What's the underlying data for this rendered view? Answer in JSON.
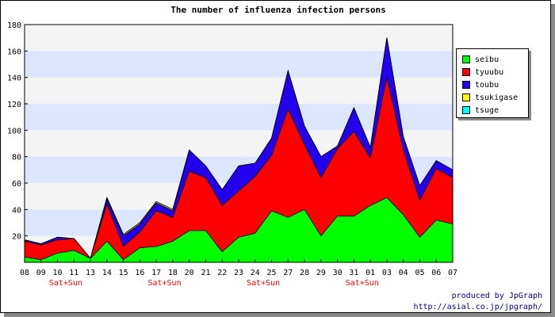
{
  "chart_data": {
    "type": "area",
    "stacked": true,
    "title": "The number of influenza infection persons",
    "xlabel": "",
    "ylabel": "",
    "ylim": [
      0,
      180
    ],
    "yticks": [
      20,
      40,
      60,
      80,
      100,
      120,
      140,
      160,
      180
    ],
    "grid": "horizontal bands",
    "legend_position": "right",
    "categories": [
      "08",
      "09",
      "10",
      "11",
      "13",
      "14",
      "15",
      "16",
      "17",
      "18",
      "20",
      "21",
      "22",
      "23",
      "24",
      "25",
      "27",
      "28",
      "29",
      "30",
      "31",
      "01",
      "03",
      "04",
      "05",
      "06",
      "07"
    ],
    "weekend_labels": [
      {
        "at": "10",
        "text": "Sat+Sun"
      },
      {
        "at": "17",
        "text": "Sat+Sun"
      },
      {
        "at": "24",
        "text": "Sat+Sun"
      },
      {
        "at": "31",
        "text": "Sat+Sun"
      }
    ],
    "series": [
      {
        "name": "seibu",
        "color": "#00ff00",
        "values": [
          4,
          2,
          7,
          9,
          3,
          16,
          2,
          11,
          12,
          16,
          24,
          24,
          8,
          19,
          22,
          39,
          34,
          40,
          20,
          35,
          35,
          43,
          49,
          36,
          19,
          32,
          29
        ]
      },
      {
        "name": "tyuubu",
        "color": "#ff0000",
        "values": [
          12,
          11,
          10,
          9,
          0,
          28,
          10,
          12,
          27,
          18,
          45,
          40,
          35,
          35,
          43,
          42,
          82,
          49,
          44,
          51,
          64,
          36,
          91,
          49,
          28,
          39,
          35
        ]
      },
      {
        "name": "toubu",
        "color": "#2200ee",
        "values": [
          1,
          1,
          2,
          0,
          0,
          4,
          8,
          6,
          6,
          5,
          16,
          9,
          12,
          19,
          10,
          13,
          29,
          14,
          16,
          2,
          18,
          8,
          30,
          10,
          11,
          6,
          6
        ]
      },
      {
        "name": "tsukigase",
        "color": "#ffff00",
        "values": [
          0,
          0,
          0,
          0,
          0,
          1,
          1,
          1,
          1,
          1,
          0,
          0,
          0,
          0,
          0,
          0,
          0,
          0,
          0,
          0,
          0,
          0,
          0,
          0,
          0,
          0,
          0
        ]
      },
      {
        "name": "tsuge",
        "color": "#00ffff",
        "values": [
          0,
          0,
          0,
          0,
          0,
          0,
          0,
          0,
          0,
          0,
          0,
          0,
          0,
          0,
          0,
          0,
          0,
          0,
          0,
          0,
          0,
          0,
          0,
          0,
          0,
          0,
          0
        ]
      }
    ]
  },
  "footer": {
    "line1": "produced by JpGraph",
    "line2": "http://asial.co.jp/jpgraph/"
  }
}
